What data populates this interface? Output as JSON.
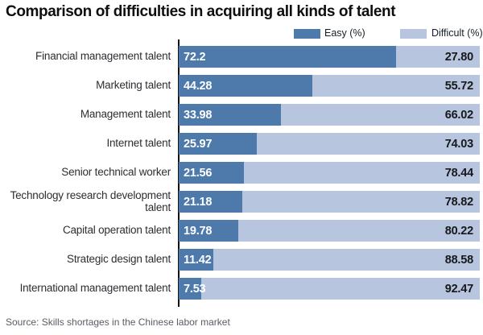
{
  "title": "Comparison of difficulties in acquiring all kinds of talent",
  "source": "Source: Skills shortages in the Chinese labor market",
  "colors": {
    "easy": "#4e79ab",
    "difficult": "#b7c6de",
    "axis": "#121212",
    "easy_value_text": "#ffffff",
    "difficult_value_text": "#16181b"
  },
  "legend": {
    "easy_label": "Easy (%)",
    "difficult_label": "Difficult (%)"
  },
  "chart_data": {
    "type": "bar",
    "orientation": "horizontal",
    "stacked": true,
    "title": "Comparison of difficulties in acquiring all kinds of talent",
    "xlim": [
      0,
      100
    ],
    "grid": false,
    "legend_position": "top-right",
    "categories": [
      "Financial management talent",
      "Marketing talent",
      "Management talent",
      "Internet talent",
      "Senior technical worker",
      "Technology research development talent",
      "Capital operation talent",
      "Strategic design talent",
      "International management talent"
    ],
    "series": [
      {
        "name": "Easy (%)",
        "color": "#4e79ab",
        "values": [
          72.2,
          44.28,
          33.98,
          25.97,
          21.56,
          21.18,
          19.78,
          11.42,
          7.53
        ],
        "labels": [
          "72.2",
          "44.28",
          "33.98",
          "25.97",
          "21.56",
          "21.18",
          "19.78",
          "11.42",
          "7.53"
        ]
      },
      {
        "name": "Difficult (%)",
        "color": "#b7c6de",
        "values": [
          27.8,
          55.72,
          66.02,
          74.03,
          78.44,
          78.82,
          80.22,
          88.58,
          92.47
        ],
        "labels": [
          "27.80",
          "55.72",
          "66.02",
          "74.03",
          "78.44",
          "78.82",
          "80.22",
          "88.58",
          "92.47"
        ]
      }
    ]
  }
}
